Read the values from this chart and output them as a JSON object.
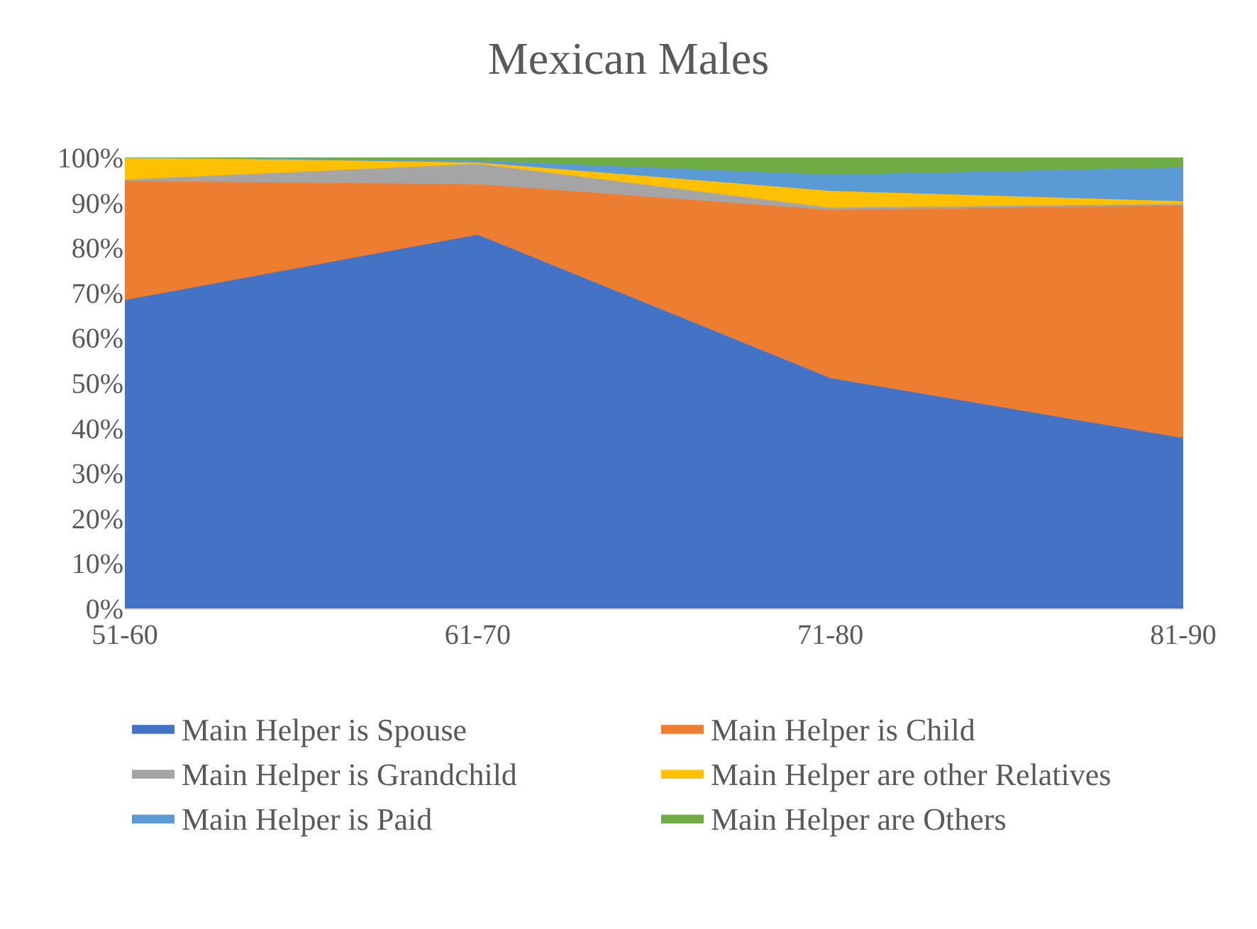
{
  "chart_data": {
    "type": "area",
    "stacked": true,
    "title": "Mexican Males",
    "categories": [
      "51-60",
      "61-70",
      "71-80",
      "81-90"
    ],
    "series": [
      {
        "name": "Main Helper is Spouse",
        "color": "#4472c4",
        "values": [
          68.3,
          82.8,
          51.0,
          37.7
        ]
      },
      {
        "name": "Main Helper is Child",
        "color": "#ed7d31",
        "values": [
          26.4,
          11.2,
          37.3,
          51.6
        ]
      },
      {
        "name": "Main Helper is Grandchild",
        "color": "#a5a5a5",
        "values": [
          0.3,
          4.5,
          0.5,
          0.3
        ]
      },
      {
        "name": "Main Helper are other Relatives",
        "color": "#ffc000",
        "values": [
          5.0,
          0.3,
          3.7,
          0.6
        ]
      },
      {
        "name": "Main Helper is Paid",
        "color": "#5b9bd5",
        "values": [
          0,
          0.4,
          3.6,
          7.5
        ]
      },
      {
        "name": "Main Helper are Others",
        "color": "#70ad47",
        "values": [
          0,
          0.8,
          3.9,
          2.3
        ]
      }
    ],
    "ylim": [
      0,
      100
    ],
    "yticks": [
      {
        "value": 0,
        "label": "0%"
      },
      {
        "value": 10,
        "label": "10%"
      },
      {
        "value": 20,
        "label": "20%"
      },
      {
        "value": 30,
        "label": "30%"
      },
      {
        "value": 40,
        "label": "40%"
      },
      {
        "value": 50,
        "label": "50%"
      },
      {
        "value": 60,
        "label": "60%"
      },
      {
        "value": 70,
        "label": "70%"
      },
      {
        "value": 80,
        "label": "80%"
      },
      {
        "value": 90,
        "label": "90%"
      },
      {
        "value": 100,
        "label": "100%"
      }
    ],
    "legend": "bottom"
  }
}
